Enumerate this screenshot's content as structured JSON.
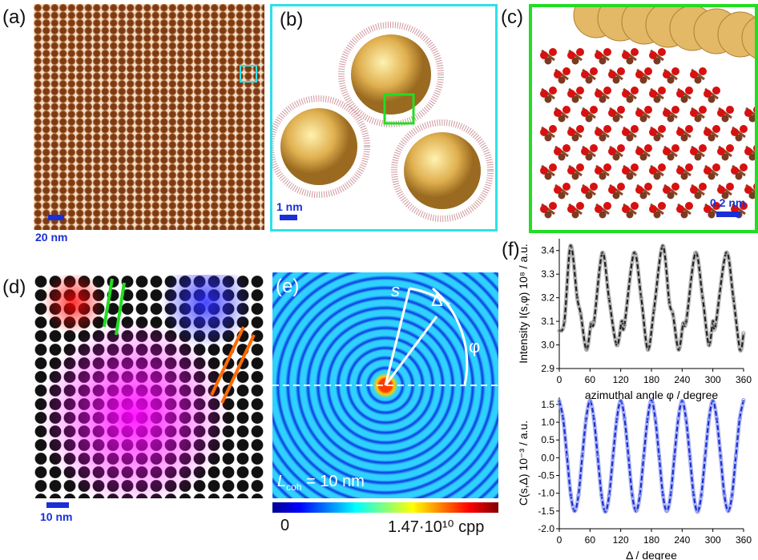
{
  "panels": {
    "a": {
      "label": "(a)",
      "scale": "20 nm"
    },
    "b": {
      "label": "(b)",
      "scale": "1 nm"
    },
    "c": {
      "label": "(c)",
      "scale": "0.2 nm"
    },
    "d": {
      "label": "(d)",
      "scale": "10 nm"
    },
    "e": {
      "label": "(e)",
      "s": "s",
      "delta": "Δ",
      "phi": "φ",
      "lcoh_sym": "L",
      "lcoh_sub": "coh",
      "lcoh_val": " = 10 nm",
      "colorbar_min": "0",
      "colorbar_max": "1.47·10¹⁰ cpp"
    },
    "f": {
      "label": "(f)"
    }
  },
  "colors": {
    "cyan_frame": "#2ee0e8",
    "green_frame": "#22dd22",
    "scale_blue": "#1a2fd6",
    "series_top": "#000000",
    "series_bottom": "#1a2fd6"
  },
  "chart_data": [
    {
      "type": "line",
      "ylabel": "Intensity I(s,φ) 10⁸ / a.u.",
      "xlabel": "azimuthal angle φ / degree",
      "xlim": [
        0,
        360
      ],
      "ylim": [
        2.9,
        3.45
      ],
      "xticks": [
        "0",
        "60",
        "120",
        "180",
        "240",
        "300",
        "360"
      ],
      "yticks": [
        "2.9",
        "3.0",
        "3.1",
        "3.2",
        "3.3",
        "3.4"
      ],
      "x": [
        0,
        10,
        22,
        35,
        42,
        53,
        62,
        68,
        84,
        97,
        112,
        122,
        127,
        146,
        160,
        173,
        185,
        202,
        215,
        222,
        233,
        242,
        248,
        266,
        280,
        292,
        300,
        305,
        326,
        340,
        353,
        360
      ],
      "y": [
        3.06,
        3.1,
        3.42,
        3.2,
        3.13,
        2.98,
        3.09,
        3.1,
        3.39,
        3.2,
        3.0,
        3.1,
        3.08,
        3.39,
        3.2,
        2.98,
        3.15,
        3.42,
        3.18,
        3.13,
        2.98,
        3.09,
        3.1,
        3.39,
        3.2,
        3.0,
        3.1,
        3.08,
        3.39,
        3.2,
        2.98,
        3.05
      ]
    },
    {
      "type": "line",
      "ylabel": "C(s,Δ) 10⁻³ / a.u.",
      "xlabel": "Δ / degree",
      "xlim": [
        0,
        360
      ],
      "ylim": [
        -2.0,
        1.7
      ],
      "xticks": [
        "0",
        "60",
        "120",
        "180",
        "240",
        "300",
        "360"
      ],
      "yticks": [
        "-2.0",
        "-1.5",
        "-1.0",
        "-0.5",
        "0.0",
        "0.5",
        "1.0",
        "1.5"
      ],
      "x_step": 7.5,
      "y": [
        1.6,
        1.1,
        0.05,
        -1.05,
        -1.5,
        -1.05,
        0.05,
        1.1,
        1.6,
        1.1,
        0.05,
        -1.05,
        -1.52,
        -1.05,
        0.05,
        1.1,
        1.6,
        1.1,
        0.05,
        -1.05,
        -1.5,
        -1.05,
        0.05,
        1.1,
        1.62,
        1.1,
        0.05,
        -1.05,
        -1.5,
        -1.05,
        0.05,
        1.1,
        1.6,
        1.1,
        0.05,
        -1.05,
        -1.52,
        -1.05,
        0.05,
        1.1,
        1.6,
        1.1,
        0.05,
        -1.05,
        -1.5,
        -1.05,
        0.05,
        1.1,
        1.62
      ]
    }
  ]
}
